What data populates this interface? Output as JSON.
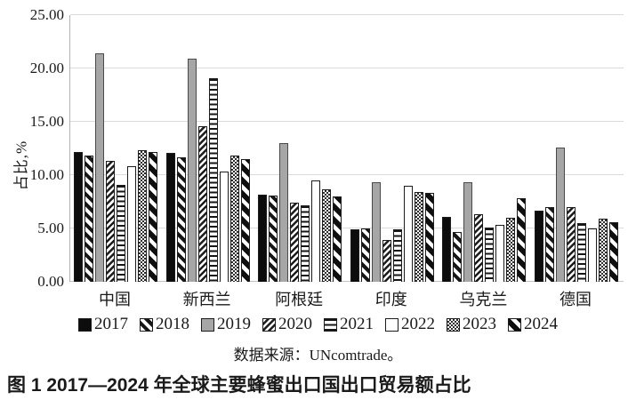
{
  "chart_data": {
    "type": "bar",
    "title": "图 1 2017—2024 年全球主要蜂蜜出口国出口贸易额占比",
    "ylabel": "占比,%",
    "xlabel": "",
    "source": "数据来源：UNcomtrade。",
    "categories": [
      "中国",
      "新西兰",
      "阿根廷",
      "印度",
      "乌克兰",
      "德国"
    ],
    "series": [
      {
        "name": "2017",
        "values": [
          12.2,
          12.1,
          8.2,
          4.9,
          6.1,
          6.7
        ]
      },
      {
        "name": "2018",
        "values": [
          11.8,
          11.7,
          8.1,
          5.0,
          4.7,
          7.0
        ]
      },
      {
        "name": "2019",
        "values": [
          21.4,
          20.9,
          13.0,
          9.3,
          9.3,
          12.6
        ]
      },
      {
        "name": "2020",
        "values": [
          11.3,
          14.6,
          7.4,
          3.9,
          6.3,
          7.0
        ]
      },
      {
        "name": "2021",
        "values": [
          9.1,
          19.1,
          7.2,
          4.9,
          5.1,
          5.5
        ]
      },
      {
        "name": "2022",
        "values": [
          10.8,
          10.3,
          9.5,
          9.0,
          5.3,
          5.0
        ]
      },
      {
        "name": "2023",
        "values": [
          12.3,
          11.8,
          8.7,
          8.4,
          6.0,
          5.9
        ]
      },
      {
        "name": "2024",
        "values": [
          12.2,
          11.5,
          8.0,
          8.3,
          7.8,
          5.6
        ]
      }
    ],
    "ylim": [
      0,
      25
    ],
    "y_ticks": [
      "0.00",
      "5.00",
      "10.00",
      "15.00",
      "20.00",
      "25.00"
    ],
    "grid": true,
    "legend_position": "bottom",
    "colors": {
      "bar_2017": "#0c0c0c",
      "bar_2019_gray": "#a6a6a6",
      "gridline": "#dadada",
      "text": "#1a1a1a"
    }
  }
}
